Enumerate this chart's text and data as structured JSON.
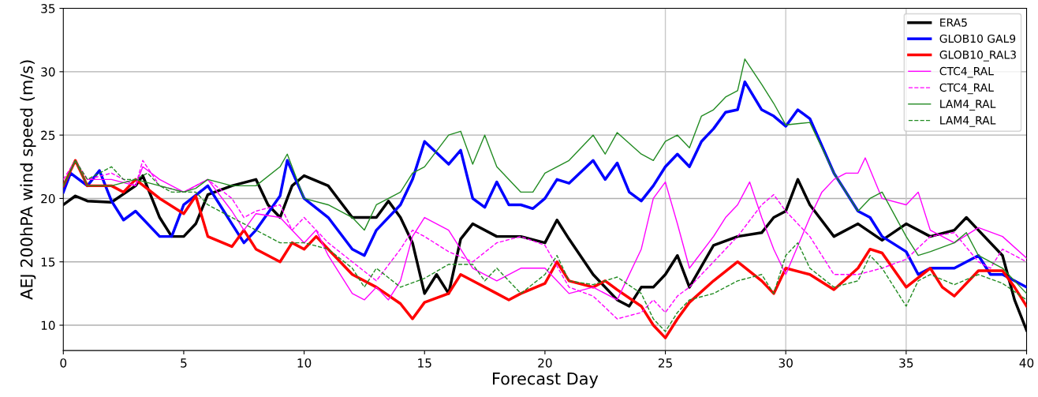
{
  "chart_data": {
    "type": "line",
    "xlabel": "Forecast Day",
    "ylabel": "AEJ 200hPA wind speed (m/s)",
    "xlim": [
      0,
      40
    ],
    "ylim": [
      8,
      35
    ],
    "xticks": [
      0,
      5,
      10,
      15,
      20,
      25,
      30,
      35,
      40
    ],
    "yticks": [
      10,
      15,
      20,
      25,
      30,
      35
    ],
    "grid": "y",
    "legend": "top right",
    "marker": "none",
    "ref_lines": [
      {
        "axis": "x",
        "value": 25,
        "color": "#c8c8c8"
      },
      {
        "axis": "x",
        "value": 30,
        "color": "#c8c8c8"
      },
      {
        "axis": "x",
        "value": 35,
        "color": "#c8c8c8"
      }
    ],
    "series": [
      {
        "name": "ERA5",
        "color": "#000000",
        "line_style": "solid",
        "x": [
          0,
          0.5,
          1,
          2,
          3,
          3.3,
          4,
          4.5,
          5,
          5.5,
          6,
          7,
          8,
          8.5,
          9,
          9.5,
          10,
          11,
          12,
          13,
          13.5,
          14,
          14.5,
          15,
          15.5,
          16,
          16.5,
          17,
          18,
          19,
          20,
          20.5,
          21,
          22,
          22.5,
          23,
          23.5,
          24,
          24.5,
          25,
          25.5,
          26,
          27,
          28,
          29,
          29.5,
          30,
          30.5,
          31,
          32,
          33,
          34,
          35,
          36,
          37,
          37.5,
          38,
          39,
          39.5,
          40
        ],
        "values": [
          19.5,
          20.2,
          19.8,
          19.7,
          21,
          21.8,
          18.5,
          17,
          17,
          18,
          20.3,
          21,
          21.5,
          19.5,
          18.5,
          21,
          21.8,
          21,
          18.5,
          18.5,
          19.8,
          18.5,
          16.5,
          12.5,
          14,
          12.5,
          16.8,
          18,
          17,
          17,
          16.5,
          18.3,
          16.8,
          14,
          13,
          12,
          11.5,
          13,
          13,
          14,
          15.5,
          13,
          16.3,
          17,
          17.3,
          18.5,
          19,
          21.5,
          19.5,
          17,
          18,
          16.7,
          18,
          17,
          17.5,
          18.5,
          17.5,
          15.5,
          12,
          9.6
        ]
      },
      {
        "name": "GLOB10 GAL9",
        "color": "#0000ff",
        "line_style": "solid",
        "x": [
          0,
          0.3,
          1,
          1.5,
          2,
          2.5,
          3,
          4,
          4.5,
          5,
          6,
          7,
          7.5,
          8,
          9,
          9.3,
          10,
          11,
          12,
          12.5,
          13,
          14,
          14.5,
          15,
          16,
          16.5,
          17,
          17.5,
          18,
          18.5,
          19,
          19.5,
          20,
          20.5,
          21,
          22,
          22.5,
          23,
          23.5,
          24,
          24.5,
          25,
          25.5,
          26,
          26.5,
          27,
          27.5,
          28,
          28.3,
          29,
          29.5,
          30,
          30.5,
          31,
          32,
          32.5,
          33,
          33.5,
          34,
          35,
          35.5,
          36,
          37,
          38,
          38.5,
          39,
          39.5,
          40
        ],
        "values": [
          20.5,
          22,
          21,
          22.2,
          19.8,
          18.3,
          19,
          17,
          17,
          19.5,
          21,
          18,
          16.5,
          17.5,
          20.2,
          23,
          20,
          18.5,
          16,
          15.5,
          17.5,
          19.5,
          21.5,
          24.5,
          22.7,
          23.8,
          20,
          19.3,
          21.3,
          19.5,
          19.5,
          19.2,
          20,
          21.5,
          21.2,
          23,
          21.5,
          22.8,
          20.5,
          19.8,
          21,
          22.5,
          23.5,
          22.5,
          24.5,
          25.5,
          26.8,
          27,
          29.2,
          27,
          26.5,
          25.7,
          27,
          26.3,
          22,
          20.5,
          19,
          18.5,
          17,
          15.8,
          14,
          14.5,
          14.5,
          15.5,
          14,
          14,
          13.5,
          13
        ]
      },
      {
        "name": "GLOB10_RAL3",
        "color": "#ff0000",
        "line_style": "solid",
        "x": [
          0,
          0.5,
          1,
          2,
          2.5,
          3,
          4,
          5,
          5.5,
          6,
          7,
          7.5,
          8,
          9,
          9.5,
          10,
          10.5,
          11,
          11.5,
          12,
          13,
          14,
          14.5,
          15,
          16,
          16.5,
          17,
          18,
          18.5,
          19,
          20,
          20.5,
          21,
          22,
          22.5,
          23,
          24,
          24.5,
          25,
          25.5,
          26,
          27,
          28,
          29,
          29.5,
          30,
          31,
          32,
          33,
          33.5,
          34,
          35,
          36,
          36.5,
          37,
          38,
          39,
          39.5,
          40
        ],
        "values": [
          21,
          23,
          21,
          21,
          20.5,
          21.5,
          20,
          18.8,
          20.2,
          17,
          16.2,
          17.5,
          16,
          15,
          16.5,
          16,
          17,
          16,
          15,
          14,
          13,
          11.7,
          10.5,
          11.8,
          12.5,
          14,
          13.5,
          12.5,
          12,
          12.5,
          13.3,
          15,
          13.5,
          13,
          13.5,
          12.8,
          11.5,
          10,
          9,
          10.5,
          11.8,
          13.5,
          15,
          13.5,
          12.5,
          14.5,
          14,
          12.8,
          14.5,
          16,
          15.7,
          13,
          14.5,
          13,
          12.3,
          14.3,
          14.3,
          13,
          11.5
        ]
      },
      {
        "name": "CTC4_RAL",
        "color": "#ff00ff",
        "line_style": "solid",
        "x": [
          1,
          2,
          3,
          3.3,
          4,
          5,
          6,
          7,
          7.5,
          8,
          9,
          10,
          10.5,
          11,
          12,
          12.5,
          13,
          13.5,
          14,
          14.5,
          15,
          16,
          16.5,
          17,
          18,
          19,
          20,
          21,
          22,
          23,
          24,
          24.5,
          25,
          25.5,
          26,
          27,
          27.5,
          28,
          28.5,
          29,
          29.5,
          30,
          31,
          31.5,
          32,
          32.5,
          33,
          33.3,
          34,
          35,
          35.5,
          36,
          37,
          38,
          39,
          40
        ],
        "values": [
          21.5,
          21.5,
          21,
          22.5,
          21.5,
          20.5,
          21.5,
          19,
          17.5,
          18.8,
          18.5,
          16.5,
          17.5,
          15.5,
          12.5,
          12,
          13,
          12,
          13.5,
          17,
          18.5,
          17.5,
          16,
          14.5,
          13.5,
          14.5,
          14.5,
          12.5,
          13,
          12,
          16,
          20,
          21.3,
          18,
          14.5,
          17,
          18.5,
          19.5,
          21.3,
          18.5,
          16,
          14,
          18.5,
          20.5,
          21.5,
          22,
          22,
          23.2,
          20,
          19.5,
          20.5,
          17.5,
          16.5,
          17.7,
          17,
          15.3
        ]
      },
      {
        "name": "CTC4_RAL",
        "color": "#ff00ff",
        "line_style": "dashed",
        "x": [
          0,
          0.5,
          1,
          2,
          3,
          3.3,
          4,
          5,
          6,
          7,
          7.5,
          8,
          9,
          9.5,
          10,
          11,
          12,
          13,
          14,
          14.5,
          15,
          16,
          17,
          18,
          19,
          20,
          21,
          22,
          23,
          24,
          24.5,
          25,
          25.5,
          26,
          27,
          28,
          29,
          29.5,
          30,
          31,
          32,
          33,
          34,
          35,
          36,
          37,
          38,
          38.5,
          39,
          40
        ],
        "values": [
          21.5,
          23,
          21.5,
          22,
          21,
          23,
          21,
          20.5,
          21.5,
          20,
          18.5,
          19,
          19.5,
          17.5,
          18.5,
          16.5,
          15,
          13.5,
          16,
          17.5,
          17,
          15.8,
          15,
          16.5,
          17,
          16.3,
          13,
          12.3,
          10.5,
          11,
          12,
          11,
          12.3,
          13,
          15,
          17,
          19.5,
          20.3,
          19,
          17,
          14,
          14,
          14.5,
          15.2,
          17,
          17.3,
          15,
          14.5,
          16,
          15
        ]
      },
      {
        "name": "LAM4_RAL",
        "color": "#228b22",
        "line_style": "solid",
        "x": [
          0,
          0.5,
          1,
          2,
          3,
          4,
          5,
          5.5,
          6,
          7,
          8,
          9,
          9.3,
          10,
          11,
          12,
          12.5,
          13,
          14,
          14.5,
          15,
          16,
          16.5,
          17,
          17.5,
          18,
          19,
          19.5,
          20,
          21,
          22,
          22.5,
          23,
          24,
          24.5,
          25,
          25.5,
          26,
          26.5,
          27,
          27.5,
          28,
          28.3,
          29,
          29.5,
          30,
          31,
          32,
          33,
          33.5,
          34,
          35,
          35.5,
          36,
          37,
          37.5,
          38,
          39,
          40
        ],
        "values": [
          21,
          23,
          21,
          21,
          21.5,
          21,
          20.5,
          20.8,
          21.5,
          21,
          21,
          22.5,
          23.5,
          20,
          19.5,
          18.5,
          17.5,
          19.5,
          20.5,
          22,
          22.5,
          25,
          25.3,
          22.7,
          25,
          22.5,
          20.5,
          20.5,
          22,
          23,
          25,
          23.5,
          25.2,
          23.5,
          23,
          24.5,
          25,
          24,
          26.5,
          27,
          28,
          28.5,
          31,
          29,
          27.5,
          25.8,
          26,
          22,
          19,
          20,
          20.5,
          17,
          15.5,
          15.8,
          16.5,
          17.3,
          15.5,
          14.5,
          12.5
        ]
      },
      {
        "name": "LAM4_RAL",
        "color": "#228b22",
        "line_style": "dashed",
        "x": [
          0,
          0.5,
          1,
          2,
          2.5,
          3,
          3.5,
          4,
          4.5,
          5,
          5.5,
          6,
          7,
          8,
          9,
          10,
          11,
          12,
          12.5,
          13,
          14,
          15,
          16,
          17,
          17.5,
          18,
          19,
          20,
          20.5,
          21,
          22,
          23,
          24,
          24.5,
          25,
          25.5,
          26,
          27,
          28,
          29,
          29.5,
          30,
          30.5,
          31,
          32,
          33,
          33.5,
          34,
          35,
          35.5,
          36,
          37,
          38,
          39,
          40
        ],
        "values": [
          21,
          23,
          21.5,
          22.5,
          21.5,
          21.5,
          22,
          21,
          20.5,
          20.5,
          20.5,
          19.5,
          18.5,
          17.5,
          16.5,
          16.5,
          16,
          14.5,
          13,
          14.5,
          13,
          13.7,
          14.8,
          14.8,
          13.5,
          14.5,
          12.5,
          14,
          15.5,
          13.5,
          13.2,
          13.8,
          12.5,
          10.5,
          9.5,
          11,
          12,
          12.5,
          13.5,
          14,
          12.5,
          15.5,
          16.5,
          14.5,
          13,
          13.5,
          15.5,
          14.5,
          11.5,
          13.5,
          14,
          13.2,
          14,
          13.3,
          12
        ]
      }
    ]
  }
}
